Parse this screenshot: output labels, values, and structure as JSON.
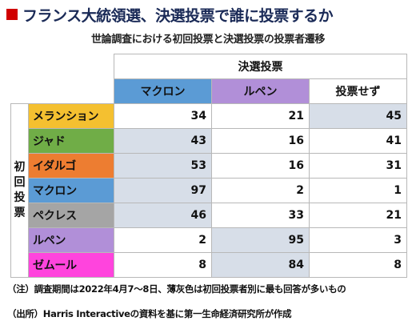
{
  "title": "フランス大統領選、決選投票で誰に投票するか",
  "subtitle": "世論調査における初回投票と決選投票の投票者遷移",
  "chart_data": {
    "type": "table",
    "column_group_label": "決選投票",
    "row_group_label": "初回投票",
    "columns": [
      {
        "label": "マクロン",
        "color": "#5b9bd5"
      },
      {
        "label": "ルペン",
        "color": "#b18fd8"
      },
      {
        "label": "投票せず",
        "color": "#ffffff"
      }
    ],
    "rows": [
      {
        "label": "メランション",
        "color": "#f4c030",
        "values": [
          34,
          21,
          45
        ],
        "highlight": 2
      },
      {
        "label": "ジャド",
        "color": "#70ad47",
        "values": [
          43,
          16,
          41
        ],
        "highlight": 0
      },
      {
        "label": "イダルゴ",
        "color": "#ed7d31",
        "values": [
          53,
          16,
          31
        ],
        "highlight": 0
      },
      {
        "label": "マクロン",
        "color": "#5b9bd5",
        "values": [
          97,
          2,
          1
        ],
        "highlight": 0
      },
      {
        "label": "ペクレス",
        "color": "#a5a5a5",
        "values": [
          46,
          33,
          21
        ],
        "highlight": 0
      },
      {
        "label": "ルペン",
        "color": "#b18fd8",
        "values": [
          2,
          95,
          3
        ],
        "highlight": 1
      },
      {
        "label": "ゼムール",
        "color": "#ff44dd",
        "values": [
          8,
          84,
          8
        ],
        "highlight": 1
      }
    ]
  },
  "notes": {
    "note1": "（注）調査期間は2022年4月7～8日、薄灰色は初回投票者別に最も回答が多いもの",
    "note2": "（出所）Harris Interactiveの資料を基に第一生命経済研究所が作成"
  }
}
